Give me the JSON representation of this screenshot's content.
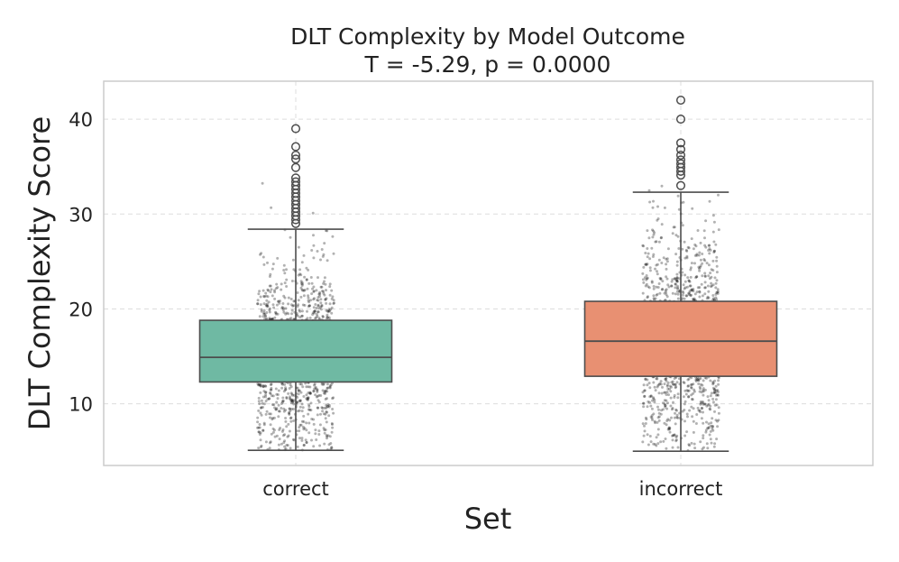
{
  "chart_data": {
    "type": "box",
    "title": "DLT Complexity by Model Outcome",
    "subtitle": "T = -5.29, p = 0.0000",
    "xlabel": "Set",
    "ylabel": "DLT Complexity Score",
    "ylim": [
      3.5,
      44
    ],
    "yticks": [
      10,
      20,
      30,
      40
    ],
    "grid": true,
    "categories": [
      "correct",
      "incorrect"
    ],
    "boxes": [
      {
        "name": "correct",
        "color": "#6fb9a3",
        "whisker_low": 5.1,
        "q1": 12.3,
        "median": 14.9,
        "q3": 18.8,
        "whisker_high": 28.4,
        "outliers": [
          29.0,
          29.4,
          29.8,
          30.2,
          30.6,
          31.0,
          31.4,
          31.8,
          32.2,
          32.6,
          33.0,
          33.4,
          33.8,
          34.9,
          35.8,
          36.2,
          37.1,
          39.0
        ]
      },
      {
        "name": "incorrect",
        "color": "#e89072",
        "whisker_low": 5.0,
        "q1": 12.9,
        "median": 16.6,
        "q3": 20.8,
        "whisker_high": 32.3,
        "outliers": [
          33.0,
          34.1,
          34.5,
          34.9,
          35.3,
          35.7,
          36.2,
          36.8,
          37.5,
          40.0,
          42.0
        ]
      }
    ]
  }
}
